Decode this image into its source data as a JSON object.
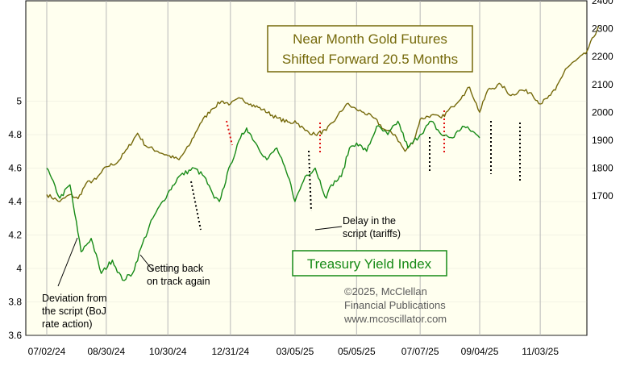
{
  "colors": {
    "background": "#ffffef",
    "border": "#000000",
    "grid": "#b8b8b8",
    "gold": "#75690a",
    "yield": "#168a16",
    "gold_box_border": "#75690a",
    "yield_box_border": "#168a16",
    "red_marker": "#e01010",
    "black_marker": "#000000"
  },
  "chart_data": {
    "type": "line",
    "title": "Near Month Gold Futures\nShifted Forward 20.5 Months",
    "x_tick_labels": [
      "07/02/24",
      "08/30/24",
      "10/30/24",
      "12/31/24",
      "03/05/25",
      "05/05/25",
      "07/07/25",
      "09/04/25",
      "11/03/25"
    ],
    "left_axis": {
      "ticks": [
        "3.6",
        "3.8",
        "4",
        "4.2",
        "4.4",
        "4.6",
        "4.8",
        "5"
      ],
      "range": [
        3.6,
        5.6
      ]
    },
    "right_axis": {
      "ticks": [
        "1700",
        "1800",
        "1900",
        "2000",
        "2100",
        "2200",
        "2300",
        "2400"
      ],
      "range": [
        1200,
        2400
      ]
    },
    "grid": true,
    "series": [
      {
        "name": "Near Month Gold Futures Shifted Forward 20.5 Months",
        "axis": "right",
        "x_range": [
          "07/02/24",
          "12/31/25"
        ],
        "keyframes": [
          [
            "07/02/24",
            1705
          ],
          [
            "07/15/24",
            1680
          ],
          [
            "07/25/24",
            1705
          ],
          [
            "08/02/24",
            1690
          ],
          [
            "08/10/24",
            1745
          ],
          [
            "08/20/24",
            1760
          ],
          [
            "08/30/24",
            1805
          ],
          [
            "09/10/24",
            1820
          ],
          [
            "09/20/24",
            1870
          ],
          [
            "09/30/24",
            1925
          ],
          [
            "10/08/24",
            1880
          ],
          [
            "10/20/24",
            1860
          ],
          [
            "10/30/24",
            1845
          ],
          [
            "11/10/24",
            1830
          ],
          [
            "11/20/24",
            1880
          ],
          [
            "12/01/24",
            1960
          ],
          [
            "12/12/24",
            2010
          ],
          [
            "12/22/24",
            2040
          ],
          [
            "12/31/24",
            2030
          ],
          [
            "01/10/25",
            2050
          ],
          [
            "01/20/25",
            2030
          ],
          [
            "02/01/25",
            2010
          ],
          [
            "02/15/25",
            1980
          ],
          [
            "03/01/25",
            1960
          ],
          [
            "03/05/25",
            1970
          ],
          [
            "03/15/25",
            1935
          ],
          [
            "03/25/25",
            1920
          ],
          [
            "04/05/25",
            1935
          ],
          [
            "04/15/25",
            1980
          ],
          [
            "04/25/25",
            2030
          ],
          [
            "05/05/25",
            2010
          ],
          [
            "05/12/25",
            2000
          ],
          [
            "05/22/25",
            1980
          ],
          [
            "06/01/25",
            1940
          ],
          [
            "06/12/25",
            1920
          ],
          [
            "06/22/25",
            1860
          ],
          [
            "07/01/25",
            1900
          ],
          [
            "07/07/25",
            1975
          ],
          [
            "07/18/25",
            1990
          ],
          [
            "07/28/25",
            1980
          ],
          [
            "08/08/25",
            2020
          ],
          [
            "08/18/25",
            2060
          ],
          [
            "08/25/25",
            2090
          ],
          [
            "09/04/25",
            2000
          ],
          [
            "09/12/25",
            2080
          ],
          [
            "09/25/25",
            2100
          ],
          [
            "10/05/25",
            2060
          ],
          [
            "10/15/25",
            2080
          ],
          [
            "10/25/25",
            2070
          ],
          [
            "11/03/25",
            2030
          ],
          [
            "11/10/25",
            2050
          ],
          [
            "11/18/25",
            2080
          ],
          [
            "11/28/25",
            2155
          ],
          [
            "12/08/25",
            2185
          ],
          [
            "12/18/25",
            2210
          ],
          [
            "12/31/25",
            2310
          ]
        ]
      },
      {
        "name": "Treasury Yield Index",
        "axis": "left",
        "x_range": [
          "07/02/24",
          "09/04/25"
        ],
        "keyframes": [
          [
            "07/02/24",
            4.6
          ],
          [
            "07/15/24",
            4.42
          ],
          [
            "07/25/24",
            4.5
          ],
          [
            "08/05/24",
            4.1
          ],
          [
            "08/15/24",
            4.18
          ],
          [
            "08/25/24",
            3.97
          ],
          [
            "09/05/24",
            4.05
          ],
          [
            "09/15/24",
            3.93
          ],
          [
            "09/25/24",
            3.97
          ],
          [
            "10/05/24",
            4.15
          ],
          [
            "10/15/24",
            4.3
          ],
          [
            "10/30/24",
            4.45
          ],
          [
            "11/10/24",
            4.55
          ],
          [
            "11/25/24",
            4.6
          ],
          [
            "12/05/24",
            4.55
          ],
          [
            "12/15/24",
            4.42
          ],
          [
            "12/20/24",
            4.4
          ],
          [
            "12/31/24",
            4.62
          ],
          [
            "01/10/25",
            4.78
          ],
          [
            "01/16/25",
            4.84
          ],
          [
            "01/25/25",
            4.75
          ],
          [
            "02/05/25",
            4.65
          ],
          [
            "02/15/25",
            4.72
          ],
          [
            "03/01/25",
            4.5
          ],
          [
            "03/05/25",
            4.4
          ],
          [
            "03/15/25",
            4.55
          ],
          [
            "03/25/25",
            4.6
          ],
          [
            "04/05/25",
            4.42
          ],
          [
            "04/10/25",
            4.5
          ],
          [
            "04/20/25",
            4.55
          ],
          [
            "04/28/25",
            4.72
          ],
          [
            "05/05/25",
            4.75
          ],
          [
            "05/15/25",
            4.7
          ],
          [
            "05/25/25",
            4.85
          ],
          [
            "06/05/25",
            4.8
          ],
          [
            "06/15/25",
            4.88
          ],
          [
            "06/25/25",
            4.72
          ],
          [
            "07/07/25",
            4.8
          ],
          [
            "07/18/25",
            4.88
          ],
          [
            "07/28/25",
            4.8
          ],
          [
            "08/08/25",
            4.78
          ],
          [
            "08/18/25",
            4.85
          ],
          [
            "08/28/25",
            4.82
          ],
          [
            "09/04/25",
            4.78
          ]
        ]
      }
    ],
    "annotations": [
      "Delay in the\nscript (tariffs)",
      "Deviation from\nthe script (BoJ\nrate action)",
      "Getting back\non track again"
    ],
    "legend_box": "Treasury Yield Index",
    "credit": "©2025, McClellan\nFinancial Publications\nwww.mcoscillator.com"
  }
}
